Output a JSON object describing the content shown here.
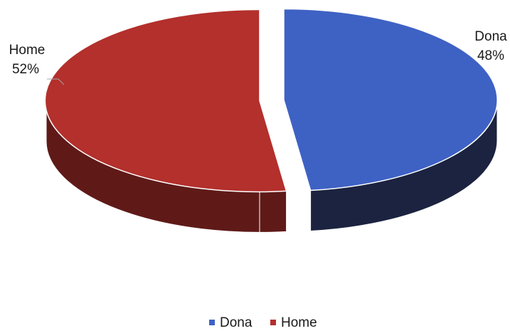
{
  "chart_data": {
    "type": "pie",
    "style": "3d-exploded",
    "categories": [
      "Dona",
      "Home"
    ],
    "values": [
      48,
      52
    ],
    "data_labels": [
      {
        "category": "Dona",
        "percent": "48%"
      },
      {
        "category": "Home",
        "percent": "52%"
      }
    ],
    "colors": {
      "Dona": {
        "top": "#3e62c4",
        "side": "#1b2340"
      },
      "Home": {
        "top": "#b3302c",
        "side": "#5f1a18"
      }
    },
    "legend": {
      "position": "bottom",
      "entries": [
        "Dona",
        "Home"
      ]
    },
    "title": ""
  }
}
